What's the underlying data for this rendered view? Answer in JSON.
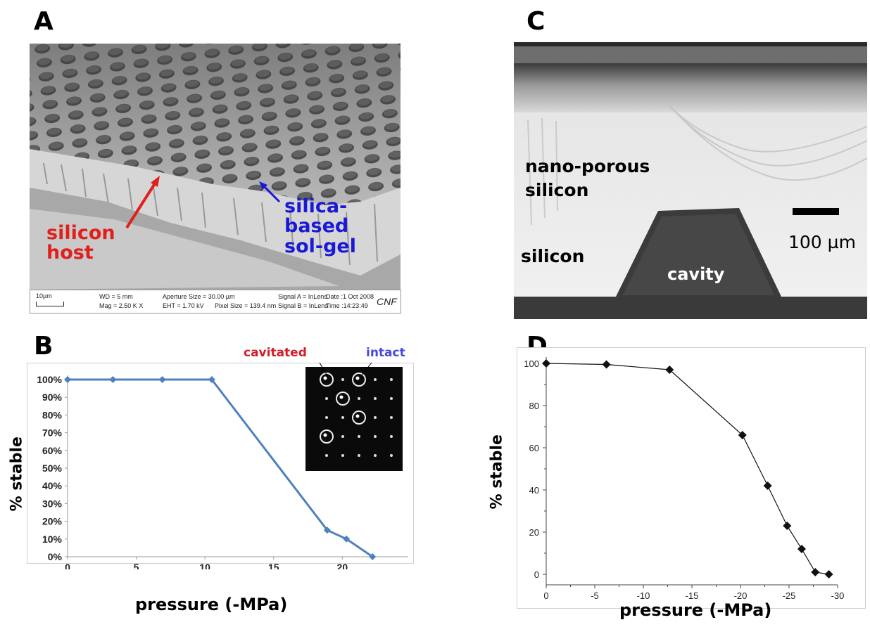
{
  "panels": {
    "A": {
      "letter": "A",
      "labels": {
        "silicon_host": "silicon\nhost",
        "silica_solgel": "silica-\nbased\nsol-gel"
      },
      "sem_info": {
        "scale": "10µm",
        "wd": "WD =   5 mm",
        "mag": "Mag =   2.50 K X",
        "aperture": "Aperture Size = 30.00 µm",
        "eht": "EHT =  1.70 kV",
        "pixel": "Pixel Size = 139.4 nm",
        "signal_a": "Signal A = InLens",
        "signal_b": "Signal B = InLens",
        "date": "Date :1 Oct 2008",
        "time": "Time :14:23:49",
        "logo": "CNF"
      },
      "colors": {
        "silicon_host": "#e0201c",
        "silica_solgel": "#1a1ad6"
      }
    },
    "B": {
      "letter": "B",
      "inset_labels": {
        "cavitated": "cavitated",
        "intact": "intact"
      },
      "inset_colors": {
        "cavitated": "#d0202c",
        "intact": "#4a4ad8"
      },
      "xlabel": "pressure (-MPa)",
      "ylabel": "% stable"
    },
    "C": {
      "letter": "C",
      "labels": {
        "nano_porous": "nano-porous\nsilicon",
        "silicon": "silicon",
        "cavity": "cavity",
        "scalebar": "100 µm"
      }
    },
    "D": {
      "letter": "D",
      "xlabel": "pressure (-MPa)",
      "ylabel": "% stable"
    }
  },
  "chart_data": [
    {
      "panel": "B",
      "type": "line",
      "x": [
        0,
        3.3,
        6.9,
        10.5,
        18.9,
        20.3,
        22.2
      ],
      "y": [
        100,
        100,
        100,
        100,
        15,
        10,
        0
      ],
      "xticks": [
        "0",
        "5",
        "10",
        "15",
        "20"
      ],
      "yticks": [
        "0%",
        "10%",
        "20%",
        "30%",
        "40%",
        "50%",
        "60%",
        "70%",
        "80%",
        "90%",
        "100%"
      ],
      "xlim": [
        0,
        24.8
      ],
      "ylim": [
        0,
        100
      ],
      "color": "#4f81bd",
      "xlabel": "pressure (-MPa)",
      "ylabel": "% stable"
    },
    {
      "panel": "D",
      "type": "line",
      "x": [
        0,
        -6.2,
        -12.7,
        -20.2,
        -22.8,
        -24.8,
        -26.3,
        -27.7,
        -29.1
      ],
      "y": [
        100,
        99.5,
        97,
        66,
        42,
        23,
        12,
        1,
        0
      ],
      "xticks": [
        "0",
        "-5",
        "-10",
        "-15",
        "-20",
        "-25",
        "-30"
      ],
      "yticks": [
        "0",
        "20",
        "40",
        "60",
        "80",
        "100"
      ],
      "xlim": [
        0,
        -30
      ],
      "ylim": [
        -5,
        103
      ],
      "color": "#111111",
      "xlabel": "pressure (-MPa)",
      "ylabel": "% stable"
    }
  ]
}
